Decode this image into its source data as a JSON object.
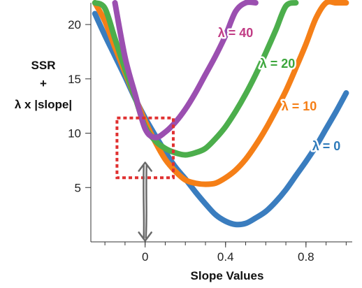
{
  "chart_data": {
    "type": "line",
    "xlabel": "Slope Values",
    "ylabel_lines": [
      "SSR",
      "+",
      "λ x |slope|"
    ],
    "xlim": [
      -0.27,
      1.03
    ],
    "ylim": [
      0,
      22
    ],
    "xticks": [
      {
        "value": 0,
        "label": "0"
      },
      {
        "value": 0.4,
        "label": "0.4"
      },
      {
        "value": 0.8,
        "label": "0.8"
      }
    ],
    "yticks": [
      {
        "value": 5,
        "label": "5"
      },
      {
        "value": 10,
        "label": "10"
      },
      {
        "value": 15,
        "label": "15"
      },
      {
        "value": 20,
        "label": "20"
      }
    ],
    "grid": false,
    "series": [
      {
        "name": "λ = 0",
        "color": "#3a7dbf",
        "x": [
          -0.25,
          -0.2,
          -0.15,
          -0.1,
          -0.05,
          0,
          0.05,
          0.1,
          0.15,
          0.2,
          0.25,
          0.3,
          0.35,
          0.4,
          0.45,
          0.5,
          0.55,
          0.6,
          0.65,
          0.7,
          0.75,
          0.8,
          0.85,
          0.9,
          0.95,
          1.0
        ],
        "y": [
          21.0,
          19.0,
          17.1,
          15.2,
          13.2,
          11.4,
          9.8,
          8.3,
          6.9,
          5.8,
          4.6,
          3.5,
          2.5,
          1.9,
          1.6,
          1.7,
          2.2,
          2.8,
          3.7,
          4.8,
          6.1,
          7.4,
          8.8,
          10.4,
          12.0,
          13.7
        ]
      },
      {
        "name": "λ = 10",
        "color": "#f57f17",
        "x": [
          -0.25,
          -0.2,
          -0.15,
          -0.1,
          -0.05,
          0,
          0.05,
          0.1,
          0.15,
          0.2,
          0.25,
          0.3,
          0.35,
          0.4,
          0.45,
          0.5,
          0.55,
          0.6,
          0.65,
          0.7,
          0.75,
          0.8,
          0.85,
          0.9,
          0.95,
          1.0
        ],
        "y": [
          22.0,
          20.3,
          17.9,
          15.6,
          13.3,
          11.1,
          9.2,
          7.6,
          6.5,
          5.7,
          5.4,
          5.3,
          5.4,
          5.9,
          6.6,
          7.6,
          8.9,
          10.4,
          12.1,
          13.9,
          16.0,
          18.2,
          20.6,
          22.0,
          22.0,
          22.0
        ]
      },
      {
        "name": "λ = 20",
        "color": "#4cae4c",
        "x": [
          -0.25,
          -0.2,
          -0.15,
          -0.1,
          -0.05,
          0,
          0.05,
          0.1,
          0.15,
          0.2,
          0.25,
          0.3,
          0.35,
          0.4,
          0.45,
          0.5,
          0.55,
          0.6,
          0.65,
          0.7,
          0.75
        ],
        "y": [
          22.0,
          21.5,
          18.7,
          15.9,
          13.3,
          10.6,
          9.3,
          8.6,
          8.2,
          8.0,
          8.2,
          8.6,
          9.5,
          10.6,
          12.0,
          13.6,
          15.4,
          17.4,
          19.5,
          21.7,
          22.0
        ]
      },
      {
        "name": "λ = 40",
        "color": "#9b4fb0",
        "x": [
          -0.15,
          -0.1,
          -0.05,
          0,
          0.05,
          0.1,
          0.15,
          0.2,
          0.25,
          0.3,
          0.35,
          0.4,
          0.45,
          0.5,
          0.55
        ],
        "y": [
          22.0,
          17.0,
          13.6,
          10.4,
          9.6,
          10.1,
          11.0,
          12.2,
          13.7,
          15.4,
          17.1,
          19.0,
          21.2,
          22.0,
          22.0
        ]
      }
    ],
    "series_labels": [
      {
        "text": "λ = 40",
        "color": "#c13c85"
      },
      {
        "text": "λ = 20",
        "color": "#3ca63c"
      },
      {
        "text": "λ = 10",
        "color": "#f57f17"
      },
      {
        "text": "λ = 0",
        "color": "#2e7ab9"
      }
    ],
    "annotations": {
      "highlight_box_color": "#e03030",
      "highlight_x_range": [
        -0.14,
        0.14
      ],
      "highlight_y_range": [
        5.9,
        11.4
      ],
      "arrow_color": "#6a6a6a",
      "arrow_x": 0,
      "arrow_y_range": [
        0.1,
        7.3
      ]
    }
  }
}
